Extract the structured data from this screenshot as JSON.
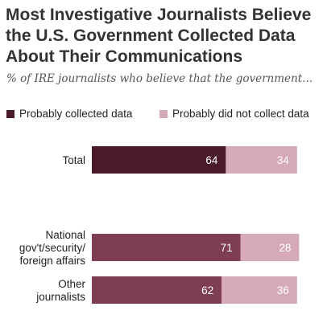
{
  "title": "Most Investigative Journalists Believe the U.S. Government Collected Data About Their Communications",
  "subtitle": "% of IRE journalists who believe that the government...",
  "colors": {
    "probably_collected": "#4a1a2c",
    "probably_collected_sub": "#7e3d55",
    "did_not_collect": "#d6a9b6"
  },
  "chart_data": {
    "type": "bar",
    "orientation": "horizontal",
    "stacked": true,
    "title": "Most Investigative Journalists Believe the U.S. Government Collected Data About Their Communications",
    "subtitle": "% of IRE journalists who believe that the government...",
    "categories": [
      [
        "Total"
      ],
      [
        "National",
        "gov't/security/",
        "foreign affairs"
      ],
      [
        "Other",
        "journalists"
      ]
    ],
    "series": [
      {
        "name": "Probably collected data",
        "values": [
          64,
          71,
          62
        ]
      },
      {
        "name": "Probably did not collect data",
        "values": [
          34,
          28,
          36
        ]
      }
    ],
    "legend": "top",
    "grid": false
  }
}
